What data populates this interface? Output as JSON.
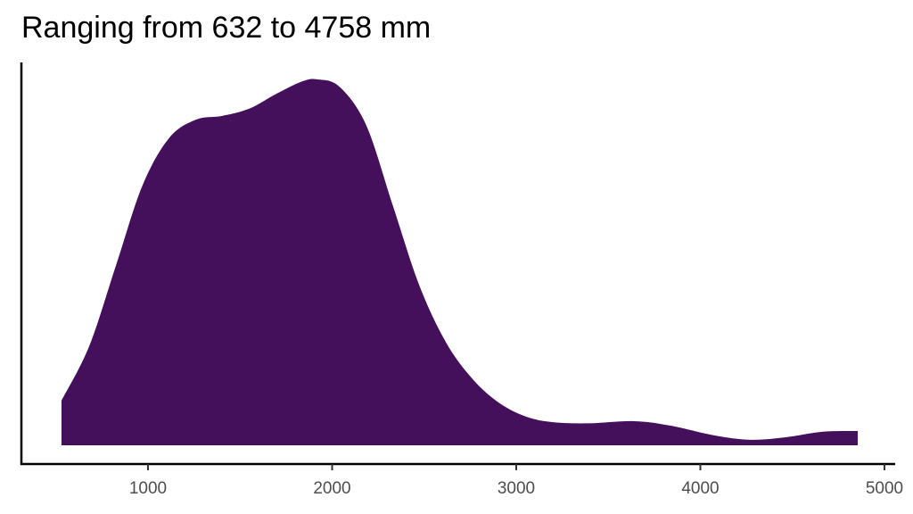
{
  "chart_data": {
    "type": "area",
    "title": "Ranging from 632 to 4758 mm",
    "xlabel": "",
    "ylabel": "",
    "xlim": [
      330,
      5080
    ],
    "ylim": [
      0,
      1.05
    ],
    "x_ticks": [
      1000,
      2000,
      3000,
      4000,
      5000
    ],
    "x_tick_labels": [
      "1000",
      "2000",
      "3000",
      "4000",
      "5000"
    ],
    "y_ticks": [],
    "grid": false,
    "fill_color": "#440F5B",
    "series": [
      {
        "x": [
          530,
          680,
          825,
          970,
          1115,
          1260,
          1400,
          1550,
          1695,
          1840,
          1920,
          2040,
          2185,
          2330,
          2475,
          2620,
          2765,
          2910,
          3055,
          3200,
          3395,
          3640,
          3835,
          4075,
          4270,
          4465,
          4660,
          4855
        ],
        "y": [
          0.122,
          0.27,
          0.49,
          0.71,
          0.84,
          0.89,
          0.9,
          0.92,
          0.96,
          0.995,
          1.0,
          0.98,
          0.875,
          0.655,
          0.435,
          0.28,
          0.18,
          0.115,
          0.078,
          0.063,
          0.06,
          0.066,
          0.054,
          0.027,
          0.015,
          0.022,
          0.037,
          0.039
        ]
      }
    ]
  }
}
